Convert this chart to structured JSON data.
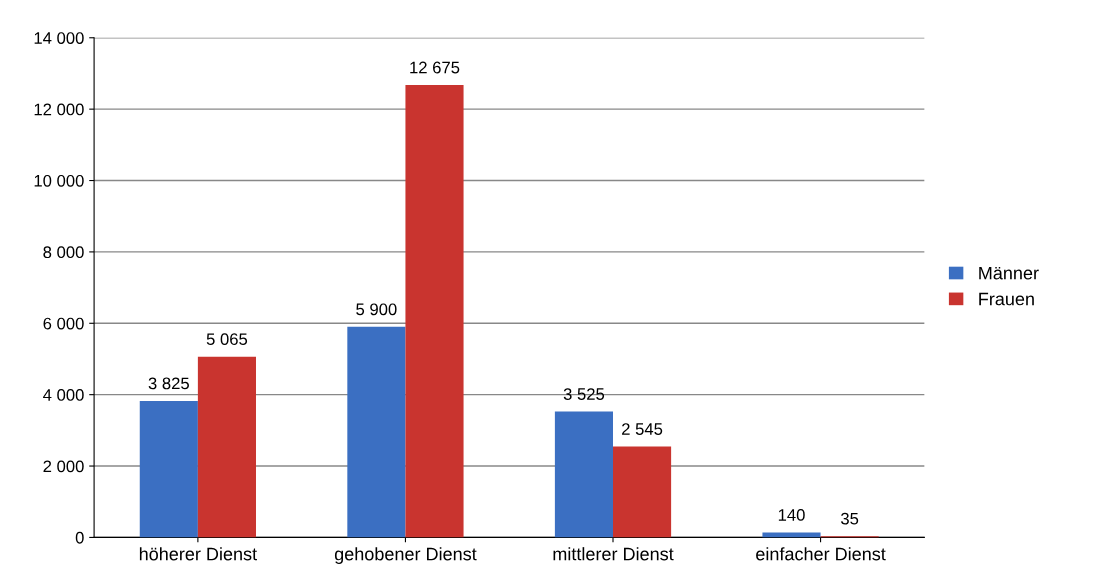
{
  "chart_data": {
    "type": "bar",
    "categories": [
      "höherer Dienst",
      "gehobener Dienst",
      "mittlerer Dienst",
      "einfacher Dienst"
    ],
    "series": [
      {
        "name": "Männer",
        "color": "#3b6fc2",
        "values": [
          3825,
          5900,
          3525,
          140
        ],
        "value_labels": [
          "3 825",
          "5 900",
          "3 525",
          "140"
        ]
      },
      {
        "name": "Frauen",
        "color": "#c9342f",
        "values": [
          5065,
          12675,
          2545,
          35
        ],
        "value_labels": [
          "5 065",
          "12 675",
          "2 545",
          "35"
        ]
      }
    ],
    "ylim": [
      0,
      14000
    ],
    "yticks": [
      0,
      {
        "value": 2000,
        "label": "2 000"
      },
      {
        "value": 4000,
        "label": "4 000"
      },
      {
        "value": 6000,
        "label": "6 000"
      },
      {
        "value": 8000,
        "label": "8 000"
      },
      {
        "value": 10000,
        "label": "10 000"
      },
      {
        "value": 12000,
        "label": "12 000"
      },
      {
        "value": 14000,
        "label": "14 000"
      }
    ],
    "grid": "y",
    "legend": "right"
  }
}
